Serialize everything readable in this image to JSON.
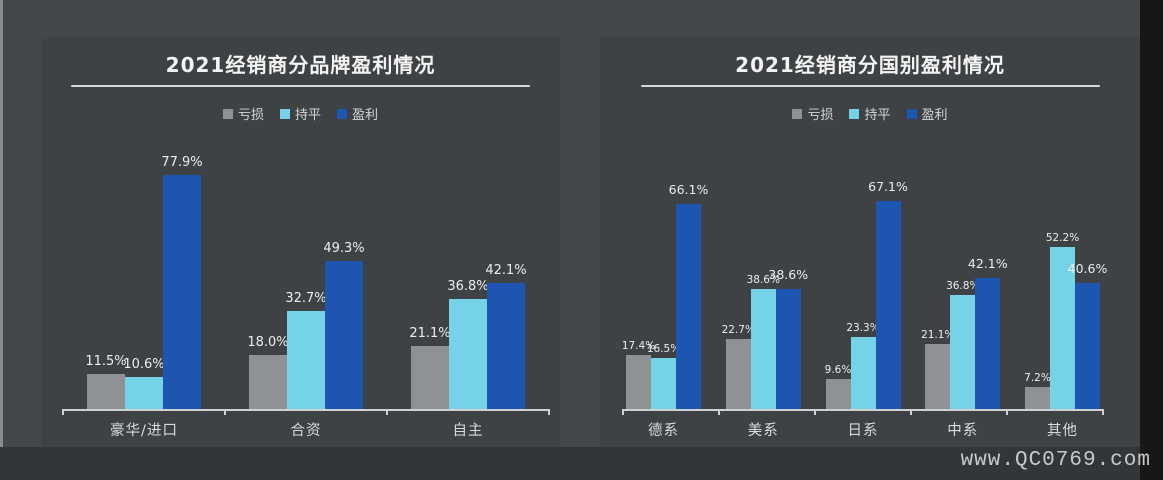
{
  "page": {
    "watermark": "www.QC0769.com"
  },
  "colors": {
    "background": "#45484b",
    "panel": "#3e4245",
    "bottom_band": "#323639",
    "right_strip": "#171718",
    "axis": "#cfd1d2",
    "title_text": "#f4f4f4",
    "value_label_text": "#eceded",
    "category_text": "#d8dadb",
    "watermark_text": "#c9c9c9",
    "series_colors": [
      "#8f9295",
      "#76d2e6",
      "#1e55b0"
    ]
  },
  "chart_data": [
    {
      "type": "bar",
      "title": "2021经销商分品牌盈利情况",
      "categories": [
        "豪华/进口",
        "合资",
        "自主"
      ],
      "series": [
        {
          "name": "亏损",
          "values": [
            11.5,
            18.0,
            21.1
          ]
        },
        {
          "name": "持平",
          "values": [
            10.6,
            32.7,
            36.8
          ]
        },
        {
          "name": "盈利",
          "values": [
            77.9,
            49.3,
            42.1
          ]
        }
      ],
      "unit": "%",
      "ylim": [
        0,
        85
      ],
      "grid": false,
      "legend_position": "top",
      "xlabel": "",
      "ylabel": ""
    },
    {
      "type": "bar",
      "title": "2021经销商分国别盈利情况",
      "categories": [
        "德系",
        "美系",
        "日系",
        "中系",
        "其他"
      ],
      "series": [
        {
          "name": "亏损",
          "values": [
            17.4,
            22.7,
            9.6,
            21.1,
            7.2
          ]
        },
        {
          "name": "持平",
          "values": [
            16.5,
            38.6,
            23.3,
            36.8,
            52.2
          ]
        },
        {
          "name": "盈利",
          "values": [
            66.1,
            38.6,
            67.1,
            42.1,
            40.6
          ]
        }
      ],
      "unit": "%",
      "ylim": [
        0,
        75
      ],
      "grid": false,
      "legend_position": "top",
      "xlabel": "",
      "ylabel": ""
    }
  ]
}
